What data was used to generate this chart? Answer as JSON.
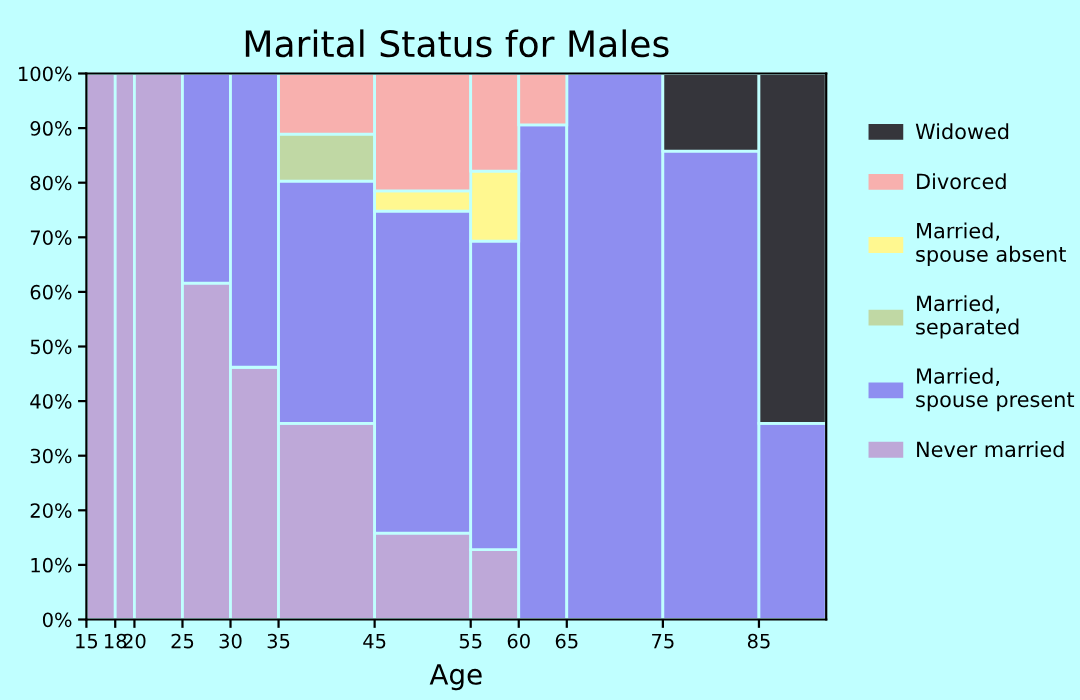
{
  "chart_data": {
    "type": "bar",
    "stacked": true,
    "title": "Marital Status for Males",
    "xlabel": "Age",
    "x": [
      16.5,
      19,
      22.5,
      27.5,
      32.5,
      40,
      50,
      57.5,
      62.5,
      70,
      80,
      88.5
    ],
    "xlim": [
      15,
      92
    ],
    "xticks": [
      15,
      18,
      20,
      25,
      30,
      35,
      45,
      55,
      60,
      65,
      75,
      85
    ],
    "ylim": [
      0,
      100
    ],
    "yticks": [
      {
        "value": 0,
        "label": "0%"
      },
      {
        "value": 10,
        "label": "10%"
      },
      {
        "value": 20,
        "label": "20%"
      },
      {
        "value": 30,
        "label": "30%"
      },
      {
        "value": 40,
        "label": "40%"
      },
      {
        "value": 50,
        "label": "50%"
      },
      {
        "value": 60,
        "label": "60%"
      },
      {
        "value": 70,
        "label": "70%"
      },
      {
        "value": 80,
        "label": "80%"
      },
      {
        "value": 90,
        "label": "90%"
      },
      {
        "value": 100,
        "label": "100%"
      }
    ],
    "grid": false,
    "legend": "right",
    "series": [
      {
        "name": "Never married",
        "color": "#bea8d8",
        "values": [
          100,
          100,
          100,
          61.6,
          46.2,
          35.9,
          15.8,
          12.8,
          null,
          null,
          null,
          null
        ]
      },
      {
        "name": "Married,\nspouse present",
        "color": "#8e8ef0",
        "values": [
          null,
          null,
          null,
          38.4,
          53.8,
          44.4,
          59.0,
          56.5,
          90.6,
          100,
          85.8,
          35.9
        ]
      },
      {
        "name": "Married,\nseparated",
        "color": "#c0d8a4",
        "values": [
          null,
          null,
          null,
          null,
          null,
          8.6,
          null,
          null,
          null,
          null,
          null,
          null
        ]
      },
      {
        "name": "Married,\nspouse absent",
        "color": "#fff890",
        "values": [
          null,
          null,
          null,
          null,
          null,
          null,
          3.7,
          12.8,
          null,
          null,
          null,
          null
        ]
      },
      {
        "name": "Divorced",
        "color": "#f8b0ae",
        "values": [
          null,
          null,
          null,
          null,
          null,
          11.1,
          21.5,
          17.9,
          9.4,
          null,
          null,
          null
        ]
      },
      {
        "name": "Widowed",
        "color": "#35353b",
        "values": [
          null,
          null,
          null,
          null,
          null,
          null,
          null,
          null,
          null,
          null,
          14.2,
          64.1
        ]
      }
    ]
  }
}
